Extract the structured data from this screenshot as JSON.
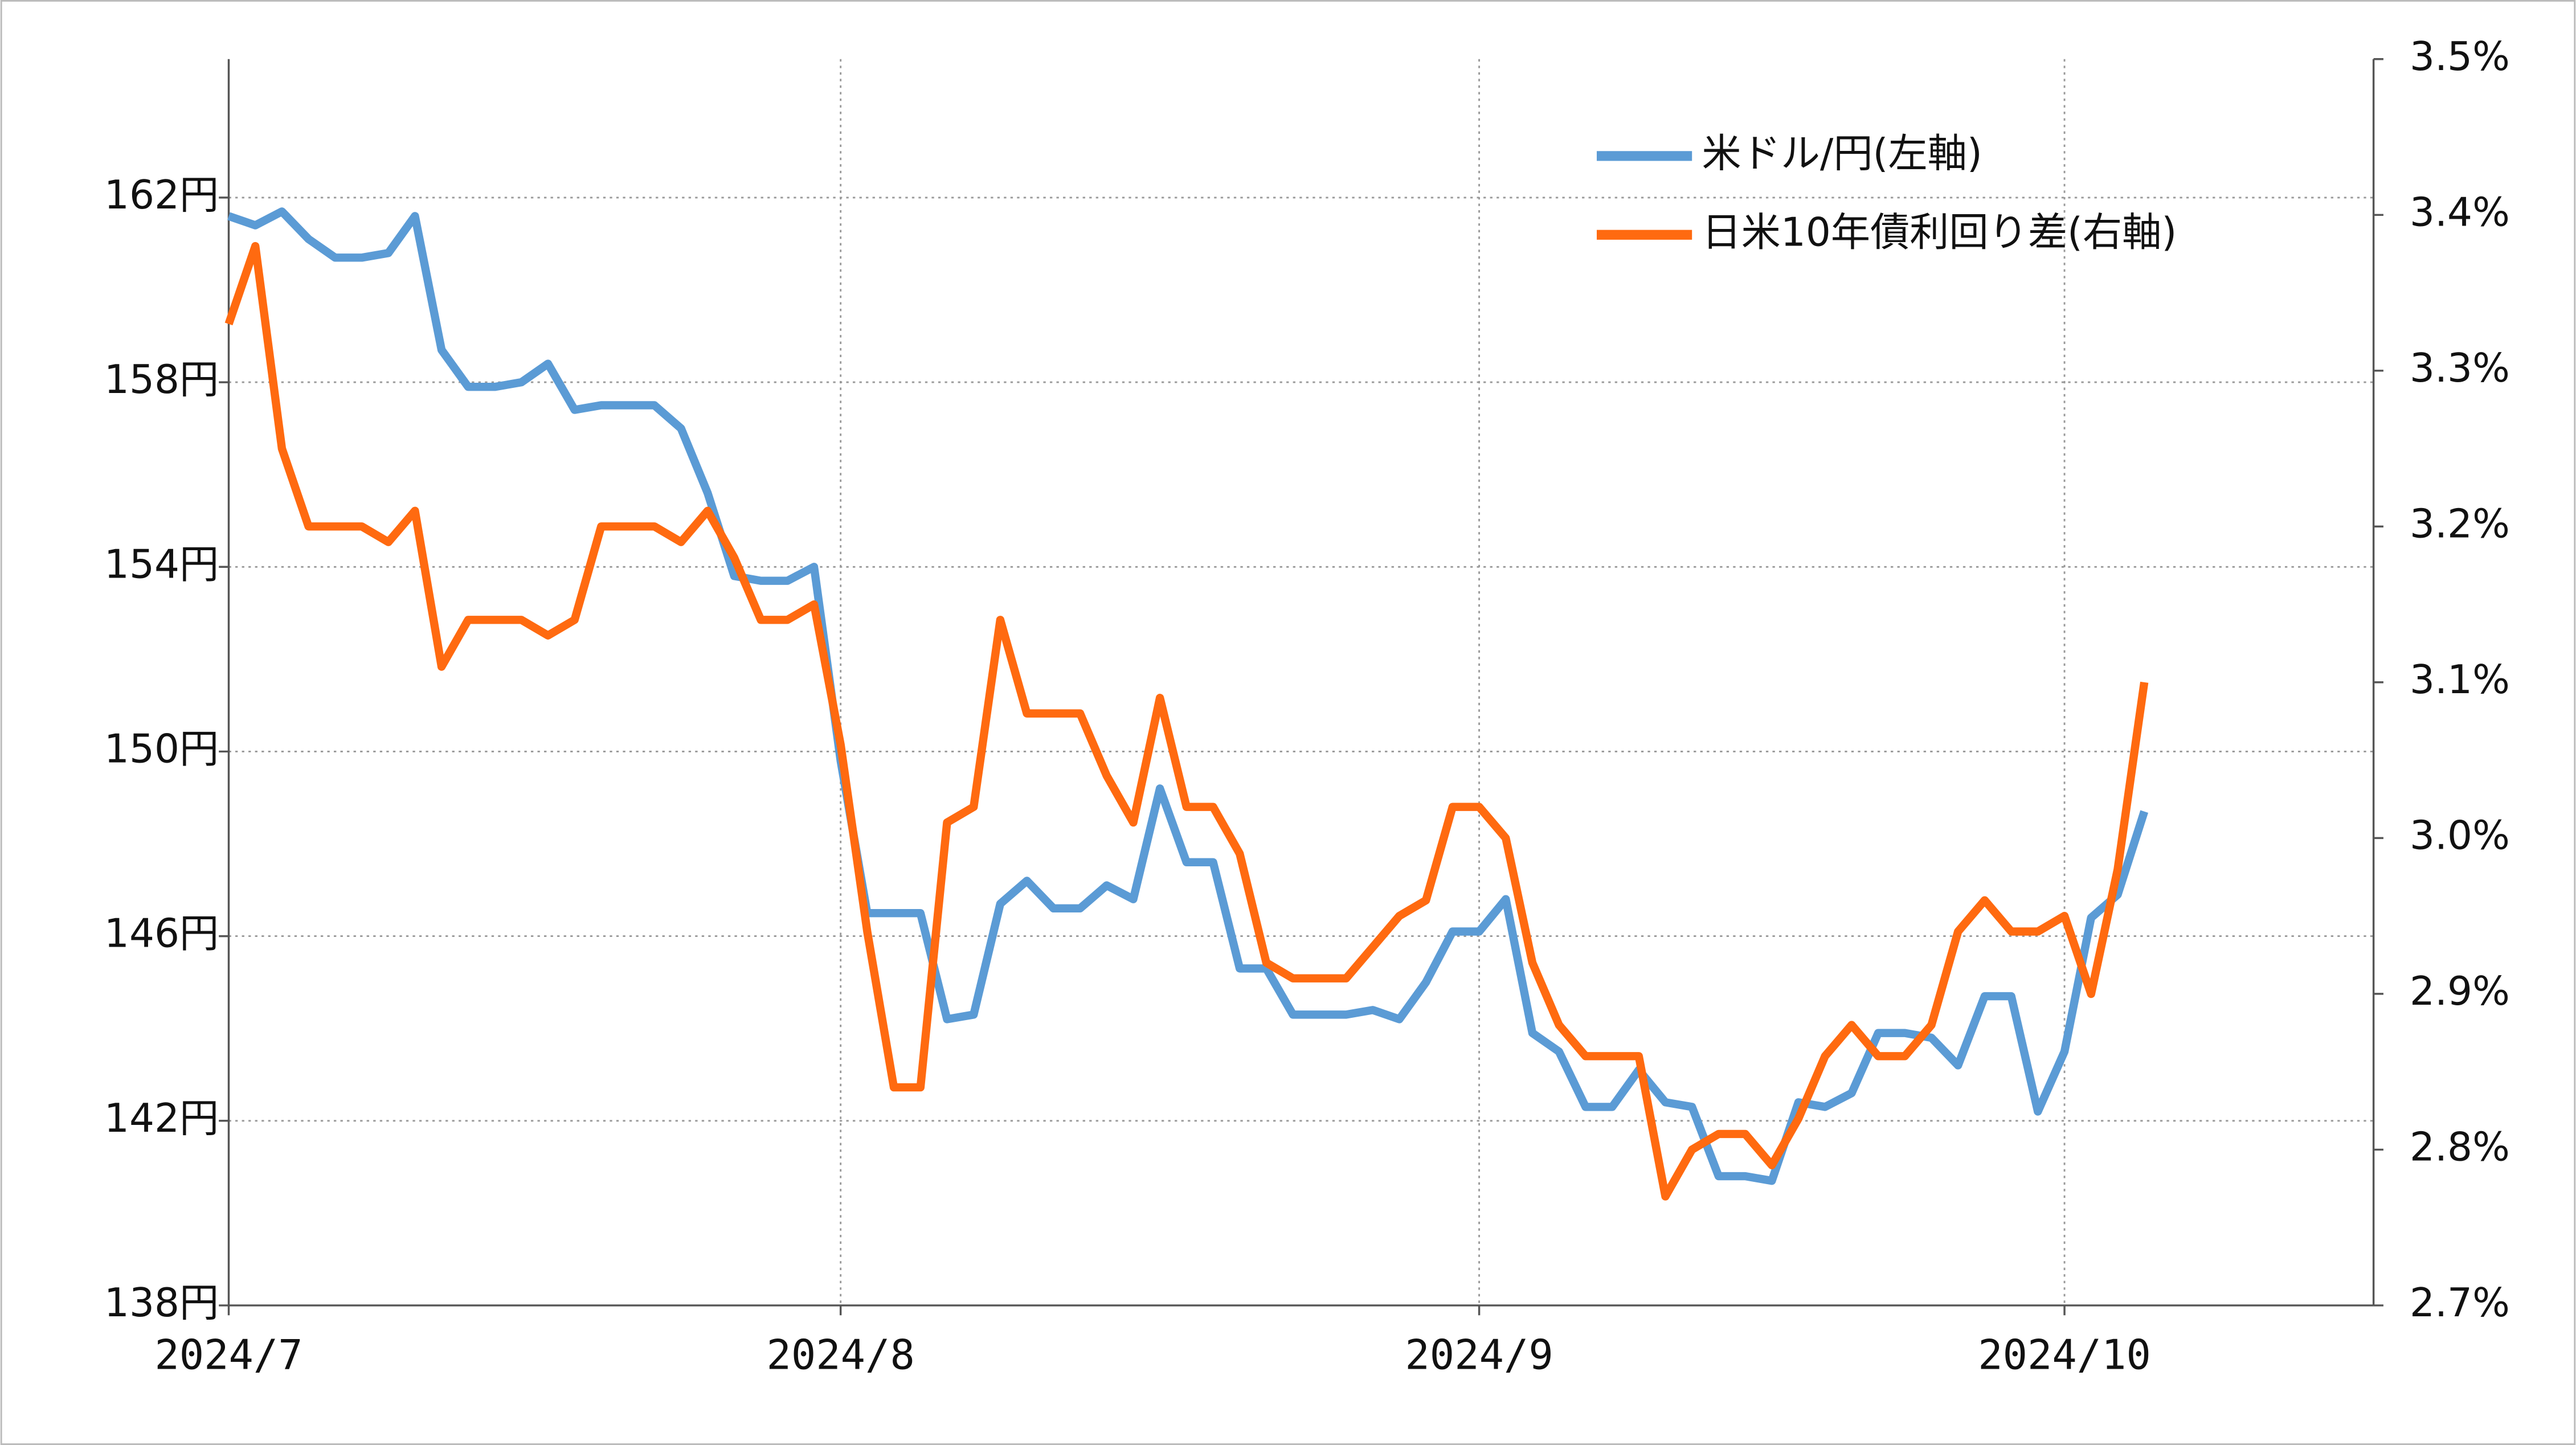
{
  "chart_data": {
    "type": "line",
    "categories": [
      "2024/7",
      null,
      null,
      null,
      null,
      null,
      null,
      null,
      null,
      null,
      null,
      null,
      null,
      null,
      null,
      null,
      null,
      null,
      null,
      null,
      null,
      null,
      null,
      "2024/8",
      null,
      null,
      null,
      null,
      null,
      null,
      null,
      null,
      null,
      null,
      null,
      null,
      null,
      null,
      null,
      null,
      null,
      null,
      null,
      null,
      null,
      null,
      null,
      "2024/9",
      null,
      null,
      null,
      null,
      null,
      null,
      null,
      null,
      null,
      null,
      null,
      null,
      null,
      null,
      null,
      null,
      null,
      null,
      null,
      null,
      null,
      "2024/10",
      null,
      null,
      null,
      null,
      null,
      null,
      null,
      null,
      null,
      null,
      null
    ],
    "series": [
      {
        "name": "米ドル/円(左軸)",
        "color": "#5b9bd5",
        "values": [
          161.6,
          161.4,
          161.7,
          161.1,
          160.7,
          160.7,
          160.8,
          161.6,
          158.7,
          157.9,
          157.9,
          158.0,
          158.4,
          157.4,
          157.5,
          157.5,
          157.5,
          157.0,
          155.6,
          153.8,
          153.7,
          153.7,
          154.0,
          149.8,
          146.5,
          146.5,
          146.5,
          144.2,
          144.3,
          146.7,
          147.2,
          146.6,
          146.6,
          147.1,
          146.8,
          149.2,
          147.6,
          147.6,
          145.3,
          145.3,
          144.3,
          144.3,
          144.3,
          144.4,
          144.2,
          145.0,
          146.1,
          146.1,
          146.8,
          143.9,
          143.5,
          142.3,
          142.3,
          143.1,
          142.4,
          142.3,
          140.8,
          140.8,
          140.7,
          142.4,
          142.3,
          142.6,
          143.9,
          143.9,
          143.8,
          143.2,
          144.7,
          144.7,
          142.2,
          143.5,
          146.4,
          146.9,
          148.7,
          null,
          null,
          null,
          null,
          null,
          null,
          null,
          null
        ]
      },
      {
        "name": "日米10年債利回り差(右軸)",
        "color": "#ff6a10",
        "axis": "y2",
        "values": [
          3.33,
          3.38,
          3.25,
          3.2,
          3.2,
          3.2,
          3.19,
          3.21,
          3.11,
          3.14,
          3.14,
          3.14,
          3.13,
          3.14,
          3.2,
          3.2,
          3.2,
          3.19,
          3.21,
          3.18,
          3.14,
          3.14,
          3.15,
          3.06,
          2.94,
          2.84,
          2.84,
          3.01,
          3.02,
          3.14,
          3.08,
          3.08,
          3.08,
          3.04,
          3.01,
          3.09,
          3.02,
          3.02,
          2.99,
          2.92,
          2.91,
          2.91,
          2.91,
          2.93,
          2.95,
          2.96,
          3.02,
          3.02,
          3.0,
          2.92,
          2.88,
          2.86,
          2.86,
          2.86,
          2.77,
          2.8,
          2.81,
          2.81,
          2.79,
          2.82,
          2.86,
          2.88,
          2.86,
          2.86,
          2.88,
          2.94,
          2.96,
          2.94,
          2.94,
          2.95,
          2.9,
          2.98,
          3.1,
          null,
          null,
          null,
          null,
          null,
          null,
          null,
          null
        ]
      }
    ],
    "ylim": [
      138,
      165
    ],
    "yticks": [
      {
        "value": 138,
        "label": "138円"
      },
      {
        "value": 142,
        "label": "142円"
      },
      {
        "value": 146,
        "label": "146円"
      },
      {
        "value": 150,
        "label": "150円"
      },
      {
        "value": 154,
        "label": "154円"
      },
      {
        "value": 158,
        "label": "158円"
      },
      {
        "value": 162,
        "label": "162円"
      }
    ],
    "y2lim": [
      2.7,
      3.5
    ],
    "y2ticks": [
      {
        "value": 2.7,
        "label": "2.7%"
      },
      {
        "value": 2.8,
        "label": "2.8%"
      },
      {
        "value": 2.9,
        "label": "2.9%"
      },
      {
        "value": 3.0,
        "label": "3.0%"
      },
      {
        "value": 3.1,
        "label": "3.1%"
      },
      {
        "value": 3.2,
        "label": "3.2%"
      },
      {
        "value": 3.3,
        "label": "3.3%"
      },
      {
        "value": 3.4,
        "label": "3.4%"
      },
      {
        "value": 3.5,
        "label": "3.5%"
      }
    ],
    "grid": true,
    "legend": "top-right"
  }
}
